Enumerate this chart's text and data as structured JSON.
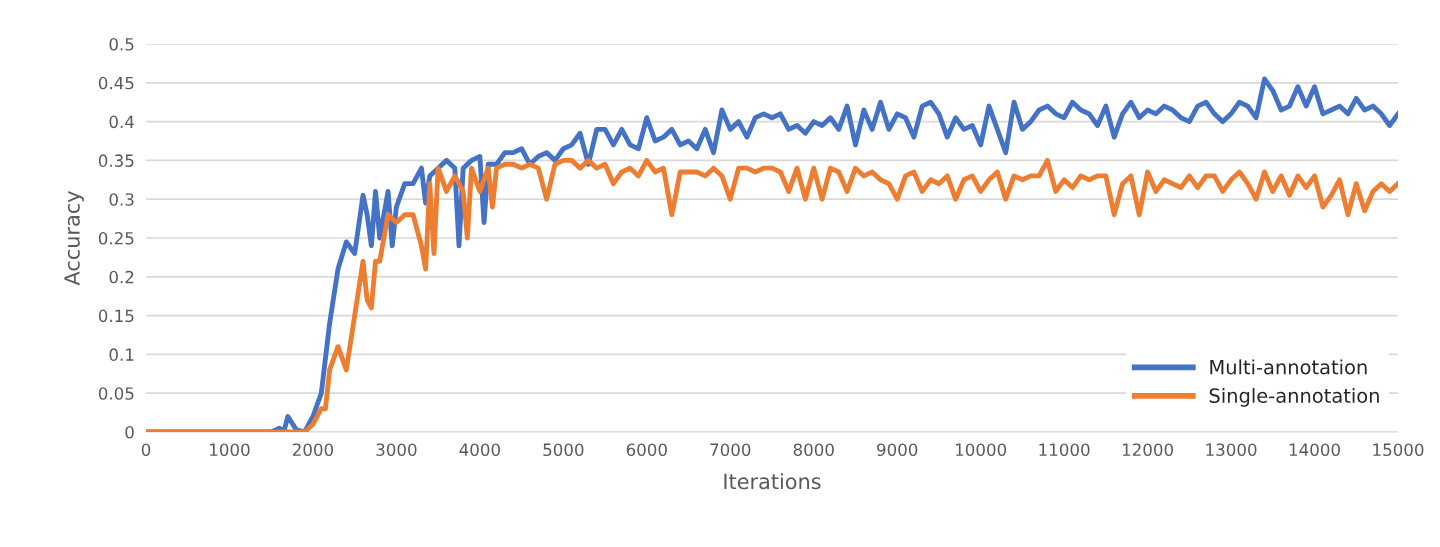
{
  "chart_data": {
    "type": "line",
    "xlabel": "Iterations",
    "ylabel": "Accuracy",
    "xlim": [
      0,
      15000
    ],
    "xticks": [
      0,
      1000,
      2000,
      3000,
      4000,
      5000,
      6000,
      7000,
      8000,
      9000,
      10000,
      11000,
      12000,
      13000,
      14000,
      15000
    ],
    "ylim": [
      0,
      0.5
    ],
    "yticks": [
      {
        "value": 0,
        "label": "0"
      },
      0.05,
      0.1,
      0.15,
      0.2,
      0.25,
      0.3,
      0.35,
      0.4,
      0.45,
      0.5
    ],
    "grid": "y",
    "legend": "bottom right",
    "marker": "none",
    "line_style": "solid",
    "series": [
      {
        "name": "Multi-annotation",
        "color": "#4472c4",
        "x": [
          0,
          1500,
          1600,
          1650,
          1700,
          1800,
          1900,
          2000,
          2100,
          2200,
          2300,
          2400,
          2500,
          2600,
          2650,
          2700,
          2750,
          2800,
          2900,
          2950,
          3000,
          3100,
          3200,
          3300,
          3350,
          3400,
          3500,
          3600,
          3700,
          3750,
          3800,
          3900,
          4000,
          4050,
          4100,
          4200,
          4300,
          4400,
          4500,
          4600,
          4700,
          4800,
          4900,
          5000,
          5100,
          5200,
          5300,
          5400,
          5500,
          5600,
          5700,
          5800,
          5900,
          6000,
          6100,
          6200,
          6300,
          6400,
          6500,
          6600,
          6700,
          6800,
          6900,
          7000,
          7100,
          7200,
          7300,
          7400,
          7500,
          7600,
          7700,
          7800,
          7900,
          8000,
          8100,
          8200,
          8300,
          8400,
          8500,
          8600,
          8700,
          8800,
          8900,
          9000,
          9100,
          9200,
          9300,
          9400,
          9500,
          9600,
          9700,
          9800,
          9900,
          10000,
          10100,
          10200,
          10300,
          10400,
          10500,
          10600,
          10700,
          10800,
          10900,
          11000,
          11100,
          11200,
          11300,
          11400,
          11500,
          11600,
          11700,
          11800,
          11900,
          12000,
          12100,
          12200,
          12300,
          12400,
          12500,
          12600,
          12700,
          12800,
          12900,
          13000,
          13100,
          13200,
          13300,
          13400,
          13500,
          13600,
          13700,
          13800,
          13900,
          14000,
          14100,
          14200,
          14300,
          14400,
          14500,
          14600,
          14700,
          14800,
          14900,
          15000
        ],
        "values": [
          0,
          0,
          0.005,
          0,
          0.02,
          0.003,
          0,
          0.02,
          0.05,
          0.14,
          0.21,
          0.245,
          0.23,
          0.305,
          0.28,
          0.24,
          0.31,
          0.25,
          0.31,
          0.24,
          0.29,
          0.32,
          0.32,
          0.34,
          0.295,
          0.33,
          0.34,
          0.35,
          0.34,
          0.24,
          0.34,
          0.35,
          0.355,
          0.27,
          0.345,
          0.345,
          0.36,
          0.36,
          0.365,
          0.345,
          0.355,
          0.36,
          0.35,
          0.365,
          0.37,
          0.385,
          0.345,
          0.39,
          0.39,
          0.37,
          0.39,
          0.37,
          0.365,
          0.405,
          0.375,
          0.38,
          0.39,
          0.37,
          0.375,
          0.365,
          0.39,
          0.36,
          0.415,
          0.39,
          0.4,
          0.38,
          0.405,
          0.41,
          0.405,
          0.41,
          0.39,
          0.395,
          0.385,
          0.4,
          0.395,
          0.405,
          0.39,
          0.42,
          0.37,
          0.415,
          0.39,
          0.425,
          0.39,
          0.41,
          0.405,
          0.38,
          0.42,
          0.425,
          0.41,
          0.38,
          0.405,
          0.39,
          0.395,
          0.37,
          0.42,
          0.39,
          0.36,
          0.425,
          0.39,
          0.4,
          0.415,
          0.42,
          0.41,
          0.405,
          0.425,
          0.415,
          0.41,
          0.395,
          0.42,
          0.38,
          0.41,
          0.425,
          0.405,
          0.415,
          0.41,
          0.42,
          0.415,
          0.405,
          0.4,
          0.42,
          0.425,
          0.41,
          0.4,
          0.41,
          0.425,
          0.42,
          0.405,
          0.455,
          0.44,
          0.415,
          0.42,
          0.445,
          0.42,
          0.445,
          0.41,
          0.415,
          0.42,
          0.41,
          0.43,
          0.415,
          0.42,
          0.41,
          0.395,
          0.41
        ]
      },
      {
        "name": "Single-annotation",
        "color": "#ed7d31",
        "x": [
          0,
          1900,
          2000,
          2100,
          2150,
          2200,
          2300,
          2400,
          2500,
          2600,
          2650,
          2700,
          2750,
          2800,
          2900,
          3000,
          3100,
          3200,
          3300,
          3350,
          3400,
          3450,
          3500,
          3600,
          3700,
          3800,
          3850,
          3900,
          4000,
          4100,
          4150,
          4200,
          4300,
          4400,
          4500,
          4600,
          4700,
          4800,
          4900,
          5000,
          5100,
          5200,
          5300,
          5400,
          5500,
          5600,
          5700,
          5800,
          5900,
          6000,
          6100,
          6200,
          6300,
          6400,
          6500,
          6600,
          6700,
          6800,
          6900,
          7000,
          7100,
          7200,
          7300,
          7400,
          7500,
          7600,
          7700,
          7800,
          7900,
          8000,
          8100,
          8200,
          8300,
          8400,
          8500,
          8600,
          8700,
          8800,
          8900,
          9000,
          9100,
          9200,
          9300,
          9400,
          9500,
          9600,
          9700,
          9800,
          9900,
          10000,
          10100,
          10200,
          10300,
          10400,
          10500,
          10600,
          10700,
          10800,
          10900,
          11000,
          11100,
          11200,
          11300,
          11400,
          11500,
          11600,
          11700,
          11800,
          11900,
          12000,
          12100,
          12200,
          12300,
          12400,
          12500,
          12600,
          12700,
          12800,
          12900,
          13000,
          13100,
          13200,
          13300,
          13400,
          13500,
          13600,
          13700,
          13800,
          13900,
          14000,
          14100,
          14200,
          14300,
          14400,
          14500,
          14600,
          14700,
          14800,
          14900,
          15000
        ],
        "values": [
          0,
          0,
          0.01,
          0.03,
          0.03,
          0.08,
          0.11,
          0.08,
          0.15,
          0.22,
          0.17,
          0.16,
          0.22,
          0.22,
          0.28,
          0.27,
          0.28,
          0.28,
          0.24,
          0.21,
          0.32,
          0.23,
          0.34,
          0.31,
          0.33,
          0.31,
          0.25,
          0.34,
          0.31,
          0.34,
          0.29,
          0.34,
          0.345,
          0.345,
          0.34,
          0.345,
          0.34,
          0.3,
          0.345,
          0.35,
          0.35,
          0.34,
          0.35,
          0.34,
          0.345,
          0.32,
          0.335,
          0.34,
          0.33,
          0.35,
          0.335,
          0.34,
          0.28,
          0.335,
          0.335,
          0.335,
          0.33,
          0.34,
          0.33,
          0.3,
          0.34,
          0.34,
          0.335,
          0.34,
          0.34,
          0.335,
          0.31,
          0.34,
          0.3,
          0.34,
          0.3,
          0.34,
          0.335,
          0.31,
          0.34,
          0.33,
          0.335,
          0.325,
          0.32,
          0.3,
          0.33,
          0.335,
          0.31,
          0.325,
          0.32,
          0.33,
          0.3,
          0.325,
          0.33,
          0.31,
          0.325,
          0.335,
          0.3,
          0.33,
          0.325,
          0.33,
          0.33,
          0.35,
          0.31,
          0.325,
          0.315,
          0.33,
          0.325,
          0.33,
          0.33,
          0.28,
          0.32,
          0.33,
          0.28,
          0.335,
          0.31,
          0.325,
          0.32,
          0.315,
          0.33,
          0.315,
          0.33,
          0.33,
          0.31,
          0.325,
          0.335,
          0.32,
          0.3,
          0.335,
          0.31,
          0.33,
          0.305,
          0.33,
          0.315,
          0.33,
          0.29,
          0.305,
          0.325,
          0.28,
          0.32,
          0.285,
          0.31,
          0.32,
          0.31,
          0.32
        ]
      }
    ]
  }
}
